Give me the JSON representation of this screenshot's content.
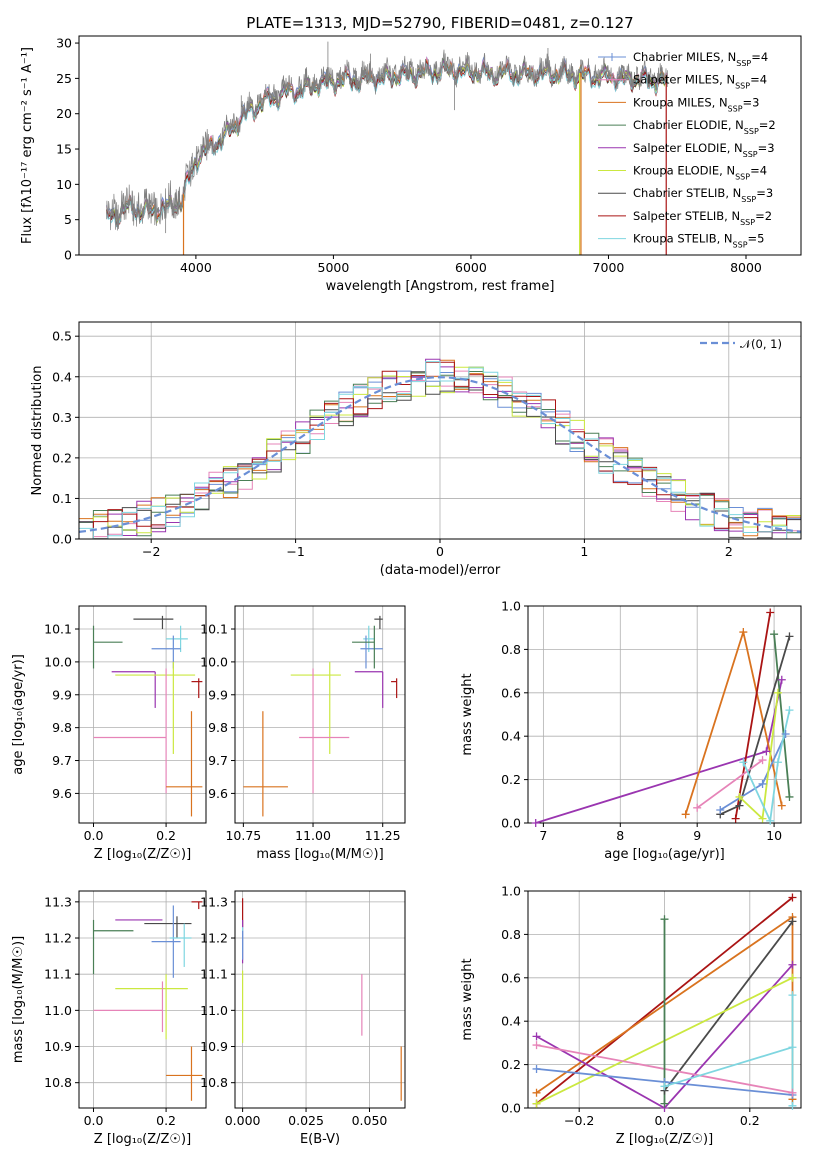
{
  "colors": {
    "chabrier_miles": "#6a8fd6",
    "salpeter_miles": "#e684b8",
    "kroupa_miles": "#d9731f",
    "chabrier_elodie": "#4a7f56",
    "salpeter_elodie": "#9a35b0",
    "kroupa_elodie": "#cbe840",
    "chabrier_stelib": "#4a4a4a",
    "salpeter_stelib": "#aa1414",
    "kroupa_stelib": "#7fd6e0"
  },
  "chart_data": [
    {
      "name": "spectrum",
      "type": "line",
      "title": "PLATE=1313, MJD=52790, FIBERID=0481, z=0.127",
      "xlabel": "wavelength [Angstrom, rest frame]",
      "ylabel": "Flux [fλ10⁻¹⁷ erg cm⁻² s⁻¹ A⁻¹]",
      "xlim": [
        3150,
        8400
      ],
      "ylim": [
        0,
        31
      ],
      "xticks": [
        "4000",
        "5000",
        "6000",
        "7000",
        "8000"
      ],
      "yticks": [
        "0",
        "5",
        "10",
        "15",
        "20",
        "25",
        "30"
      ],
      "legend_position": "top-right",
      "legend": [
        {
          "label": "Chabrier MILES, N",
          "sub": "SSP",
          "tail": "=4"
        },
        {
          "label": "Salpeter MILES, N",
          "sub": "SSP",
          "tail": "=4"
        },
        {
          "label": "Kroupa MILES, N",
          "sub": "SSP",
          "tail": "=3"
        },
        {
          "label": "Chabrier ELODIE, N",
          "sub": "SSP",
          "tail": "=2"
        },
        {
          "label": "Salpeter ELODIE, N",
          "sub": "SSP",
          "tail": "=3"
        },
        {
          "label": "Kroupa ELODIE, N",
          "sub": "SSP",
          "tail": "=4"
        },
        {
          "label": "Chabrier STELIB, N",
          "sub": "SSP",
          "tail": "=3"
        },
        {
          "label": "Salpeter STELIB, N",
          "sub": "SSP",
          "tail": "=2"
        },
        {
          "label": "Kroupa STELIB, N",
          "sub": "SSP",
          "tail": "=5"
        }
      ],
      "continuum": {
        "x": [
          3350,
          3500,
          3700,
          3900,
          4000,
          4200,
          4400,
          4600,
          5000,
          5400,
          5800,
          6200,
          6600,
          7000,
          7400,
          7430
        ],
        "y": [
          5.5,
          7,
          6.5,
          8,
          14,
          17,
          21,
          23,
          25,
          25.5,
          26.5,
          26,
          26,
          25.5,
          25,
          24.5
        ]
      },
      "drops": [
        {
          "x": 3910,
          "series": "kroupa_miles"
        },
        {
          "x": 6790,
          "series": "kroupa_elodie"
        },
        {
          "x": 6800,
          "series": "kroupa_miles"
        },
        {
          "x": 7420,
          "series": "salpeter_stelib"
        }
      ]
    },
    {
      "name": "residuals",
      "type": "histogram",
      "xlabel": "(data-model)/error",
      "ylabel": "Normed distribution",
      "xlim": [
        -2.5,
        2.5
      ],
      "ylim": [
        0,
        0.535
      ],
      "xticks": [
        "−2",
        "−1",
        "0",
        "1",
        "2"
      ],
      "yticks": [
        "0.0",
        "0.1",
        "0.2",
        "0.3",
        "0.4",
        "0.5"
      ],
      "legend_position": "top-right",
      "legend": [
        "𝒩(0, 1)"
      ],
      "gaussian": {
        "mean": 0,
        "sigma": 1
      }
    },
    {
      "name": "age_vs_Z",
      "type": "errorbar",
      "xlabel": "Z [log₁₀(Z/Z☉)]",
      "ylabel": "age  [log₁₀(age/yr)]",
      "xlim": [
        -0.04,
        0.31
      ],
      "ylim": [
        9.51,
        10.17
      ],
      "xticks": [
        "0.0",
        "0.2"
      ],
      "yticks": [
        "9.6",
        "9.7",
        "9.8",
        "9.9",
        "10.0",
        "10.1"
      ],
      "points": [
        {
          "s": "chabrier_stelib",
          "x": 0.19,
          "xerr": [
            0.08,
            0.03
          ],
          "y": 10.13,
          "yerr": [
            0.03,
            0.01
          ]
        },
        {
          "s": "kroupa_stelib",
          "x": 0.24,
          "xerr": [
            0.04,
            0.02
          ],
          "y": 10.07,
          "yerr": [
            0.04,
            0.04
          ]
        },
        {
          "s": "chabrier_miles",
          "x": 0.22,
          "xerr": [
            0.06,
            0.02
          ],
          "y": 10.04,
          "yerr": [
            0.06,
            0.04
          ]
        },
        {
          "s": "chabrier_elodie",
          "x": 0.0,
          "xerr": [
            0.0,
            0.08
          ],
          "y": 10.06,
          "yerr": [
            0.08,
            0.05
          ]
        },
        {
          "s": "salpeter_elodie",
          "x": 0.17,
          "xerr": [
            0.12,
            0.0
          ],
          "y": 9.97,
          "yerr": [
            0.11,
            0.0
          ]
        },
        {
          "s": "kroupa_elodie",
          "x": 0.22,
          "xerr": [
            0.16,
            0.06
          ],
          "y": 9.96,
          "yerr": [
            0.24,
            0.04
          ]
        },
        {
          "s": "salpeter_stelib",
          "x": 0.29,
          "xerr": [
            0.02,
            0.01
          ],
          "y": 9.94,
          "yerr": [
            0.05,
            0.01
          ]
        },
        {
          "s": "salpeter_miles",
          "x": 0.2,
          "xerr": [
            0.2,
            0.0
          ],
          "y": 9.77,
          "yerr": [
            0.17,
            0.21
          ]
        },
        {
          "s": "kroupa_miles",
          "x": 0.27,
          "xerr": [
            0.07,
            0.03
          ],
          "y": 9.62,
          "yerr": [
            0.09,
            0.23
          ]
        }
      ]
    },
    {
      "name": "age_vs_mass",
      "type": "errorbar",
      "xlabel": "mass [log₁₀(M/M☉)]",
      "ylabel": "",
      "xlim": [
        10.72,
        11.33
      ],
      "ylim": [
        9.51,
        10.17
      ],
      "xticks": [
        "10.75",
        "11.00",
        "11.25"
      ],
      "yticks": [
        "9.6",
        "9.7",
        "9.8",
        "9.9",
        "10.0",
        "10.1"
      ],
      "points": [
        {
          "s": "chabrier_stelib",
          "x": 11.24,
          "xerr": [
            0.02,
            0.01
          ],
          "y": 10.13,
          "yerr": [
            0.03,
            0.01
          ]
        },
        {
          "s": "kroupa_stelib",
          "x": 11.2,
          "xerr": [
            0.02,
            0.02
          ],
          "y": 10.07,
          "yerr": [
            0.04,
            0.04
          ]
        },
        {
          "s": "chabrier_miles",
          "x": 11.19,
          "xerr": [
            0.02,
            0.06
          ],
          "y": 10.04,
          "yerr": [
            0.06,
            0.04
          ]
        },
        {
          "s": "chabrier_elodie",
          "x": 11.22,
          "xerr": [
            0.08,
            0.0
          ],
          "y": 10.06,
          "yerr": [
            0.08,
            0.05
          ]
        },
        {
          "s": "salpeter_elodie",
          "x": 11.25,
          "xerr": [
            0.1,
            0.0
          ],
          "y": 9.97,
          "yerr": [
            0.11,
            0.0
          ]
        },
        {
          "s": "kroupa_elodie",
          "x": 11.06,
          "xerr": [
            0.14,
            0.04
          ],
          "y": 9.96,
          "yerr": [
            0.24,
            0.04
          ]
        },
        {
          "s": "salpeter_stelib",
          "x": 11.3,
          "xerr": [
            0.02,
            0.0
          ],
          "y": 9.94,
          "yerr": [
            0.05,
            0.01
          ]
        },
        {
          "s": "salpeter_miles",
          "x": 11.0,
          "xerr": [
            0.05,
            0.13
          ],
          "y": 9.77,
          "yerr": [
            0.17,
            0.21
          ]
        },
        {
          "s": "kroupa_miles",
          "x": 10.82,
          "xerr": [
            0.07,
            0.09
          ],
          "y": 9.62,
          "yerr": [
            0.09,
            0.23
          ]
        }
      ]
    },
    {
      "name": "weight_vs_age",
      "type": "line",
      "xlabel": "age  [log₁₀(age/yr)]",
      "ylabel": "mass weight",
      "xlim": [
        6.8,
        10.35
      ],
      "ylim": [
        0,
        1
      ],
      "xticks": [
        "7",
        "8",
        "9",
        "10"
      ],
      "yticks": [
        "0.0",
        "0.2",
        "0.4",
        "0.6",
        "0.8",
        "1.0"
      ],
      "series": [
        {
          "s": "salpeter_elodie",
          "x": [
            6.9,
            9.9,
            10.1
          ],
          "y": [
            0.0,
            0.33,
            0.66
          ]
        },
        {
          "s": "kroupa_miles",
          "x": [
            8.85,
            9.6,
            10.1
          ],
          "y": [
            0.04,
            0.88,
            0.08
          ]
        },
        {
          "s": "salpeter_stelib",
          "x": [
            9.5,
            9.95
          ],
          "y": [
            0.02,
            0.97
          ]
        },
        {
          "s": "chabrier_elodie",
          "x": [
            10.0,
            10.2
          ],
          "y": [
            0.87,
            0.12
          ]
        },
        {
          "s": "chabrier_stelib",
          "x": [
            9.3,
            9.55,
            10.2
          ],
          "y": [
            0.04,
            0.08,
            0.86
          ]
        },
        {
          "s": "chabrier_miles",
          "x": [
            9.3,
            9.85,
            10.15
          ],
          "y": [
            0.06,
            0.18,
            0.41
          ]
        },
        {
          "s": "kroupa_elodie",
          "x": [
            9.55,
            9.85,
            10.05
          ],
          "y": [
            0.12,
            0.02,
            0.6
          ]
        },
        {
          "s": "salpeter_miles",
          "x": [
            9.0,
            9.85
          ],
          "y": [
            0.07,
            0.29
          ]
        },
        {
          "s": "kroupa_stelib",
          "x": [
            9.6,
            9.95,
            10.05,
            10.2
          ],
          "y": [
            0.28,
            0.01,
            0.28,
            0.52
          ]
        }
      ]
    },
    {
      "name": "mass_vs_Z",
      "type": "errorbar",
      "xlabel": "Z [log₁₀(Z/Z☉)]",
      "ylabel": "mass [log₁₀(M/M☉)]",
      "xlim": [
        -0.04,
        0.31
      ],
      "ylim": [
        10.73,
        11.33
      ],
      "xticks": [
        "0.0",
        "0.2"
      ],
      "yticks": [
        "10.8",
        "10.9",
        "11.0",
        "11.1",
        "11.2",
        "11.3"
      ],
      "points": [
        {
          "s": "chabrier_stelib",
          "x": 0.23,
          "xerr": [
            0.09,
            0.04
          ],
          "y": 11.24,
          "yerr": [
            0.04,
            0.02
          ]
        },
        {
          "s": "chabrier_miles",
          "x": 0.22,
          "xerr": [
            0.06,
            0.02
          ],
          "y": 11.19,
          "yerr": [
            0.1,
            0.1
          ]
        },
        {
          "s": "kroupa_stelib",
          "x": 0.25,
          "xerr": [
            0.04,
            0.02
          ],
          "y": 11.2,
          "yerr": [
            0.08,
            0.04
          ]
        },
        {
          "s": "chabrier_elodie",
          "x": 0.0,
          "xerr": [
            0.0,
            0.11
          ],
          "y": 11.22,
          "yerr": [
            0.12,
            0.03
          ]
        },
        {
          "s": "salpeter_elodie",
          "x": 0.17,
          "xerr": [
            0.11,
            0.02
          ],
          "y": 11.25,
          "yerr": [
            0.0,
            0.0
          ]
        },
        {
          "s": "kroupa_elodie",
          "x": 0.2,
          "xerr": [
            0.14,
            0.06
          ],
          "y": 11.06,
          "yerr": [
            0.14,
            0.04
          ]
        },
        {
          "s": "salpeter_stelib",
          "x": 0.29,
          "xerr": [
            0.02,
            0.01
          ],
          "y": 11.3,
          "yerr": [
            0.02,
            0.0
          ]
        },
        {
          "s": "salpeter_miles",
          "x": 0.19,
          "xerr": [
            0.19,
            0.0
          ],
          "y": 11.0,
          "yerr": [
            0.06,
            0.08
          ]
        },
        {
          "s": "kroupa_miles",
          "x": 0.27,
          "xerr": [
            0.07,
            0.03
          ],
          "y": 10.82,
          "yerr": [
            0.07,
            0.08
          ]
        }
      ]
    },
    {
      "name": "mass_vs_EBV",
      "type": "errorbar",
      "xlabel": "E(B-V)",
      "ylabel": "",
      "xlim": [
        -0.003,
        0.064
      ],
      "ylim": [
        10.73,
        11.33
      ],
      "xticks": [
        "0.000",
        "0.025",
        "0.050"
      ],
      "yticks": [
        "10.8",
        "10.9",
        "11.0",
        "11.1",
        "11.2",
        "11.3"
      ],
      "points": [
        {
          "s": "salpeter_stelib",
          "x": 0.0,
          "xerr": [
            0,
            0
          ],
          "y": 11.26,
          "yerr": [
            0.03,
            0.05
          ]
        },
        {
          "s": "salpeter_elodie",
          "x": 0.0,
          "xerr": [
            0,
            0
          ],
          "y": 11.17,
          "yerr": [
            0.04,
            0.08
          ]
        },
        {
          "s": "kroupa_stelib",
          "x": 0.0,
          "xerr": [
            0,
            0
          ],
          "y": 11.2,
          "yerr": [
            0.04,
            0.03
          ]
        },
        {
          "s": "chabrier_miles",
          "x": 0.0,
          "xerr": [
            0,
            0
          ],
          "y": 11.18,
          "yerr": [
            0.04,
            0.04
          ]
        },
        {
          "s": "kroupa_elodie",
          "x": 0.0,
          "xerr": [
            0,
            0
          ],
          "y": 11.02,
          "yerr": [
            0.11,
            0.09
          ]
        },
        {
          "s": "salpeter_miles",
          "x": 0.047,
          "xerr": [
            0,
            0
          ],
          "y": 11.03,
          "yerr": [
            0.1,
            0.07
          ]
        },
        {
          "s": "kroupa_miles",
          "x": 0.0625,
          "xerr": [
            0,
            0
          ],
          "y": 10.83,
          "yerr": [
            0.08,
            0.07
          ]
        }
      ]
    },
    {
      "name": "weight_vs_Z",
      "type": "line",
      "xlabel": "Z [log₁₀(Z/Z☉)]",
      "ylabel": "mass weight",
      "xlim": [
        -0.32,
        0.32
      ],
      "ylim": [
        0,
        1
      ],
      "xticks": [
        "−0.2",
        "0.0",
        "0.2"
      ],
      "yticks": [
        "0.0",
        "0.2",
        "0.4",
        "0.6",
        "0.8",
        "1.0"
      ],
      "series": [
        {
          "s": "salpeter_stelib",
          "x": [
            -0.3,
            0.3
          ],
          "y": [
            0.02,
            0.97
          ]
        },
        {
          "s": "kroupa_miles",
          "x": [
            -0.3,
            0.3,
            0.3
          ],
          "y": [
            0.07,
            0.88,
            0.04
          ]
        },
        {
          "s": "chabrier_stelib",
          "x": [
            0.0,
            0.3
          ],
          "y": [
            0.08,
            0.86
          ]
        },
        {
          "s": "salpeter_elodie",
          "x": [
            -0.3,
            0.0,
            0.3
          ],
          "y": [
            0.33,
            0.0,
            0.66
          ]
        },
        {
          "s": "kroupa_elodie",
          "x": [
            -0.3,
            0.3
          ],
          "y": [
            0.02,
            0.6
          ]
        },
        {
          "s": "chabrier_miles",
          "x": [
            -0.3,
            0.0,
            0.3
          ],
          "y": [
            0.18,
            0.12,
            0.06
          ]
        },
        {
          "s": "salpeter_miles",
          "x": [
            -0.3,
            0.3
          ],
          "y": [
            0.29,
            0.07
          ]
        },
        {
          "s": "kroupa_stelib",
          "x": [
            0.0,
            0.3,
            0.3,
            0.3
          ],
          "y": [
            0.1,
            0.28,
            0.52,
            0.01
          ]
        },
        {
          "s": "chabrier_elodie",
          "x": [
            0.0,
            0.0
          ],
          "y": [
            0.02,
            0.87
          ]
        }
      ]
    }
  ]
}
